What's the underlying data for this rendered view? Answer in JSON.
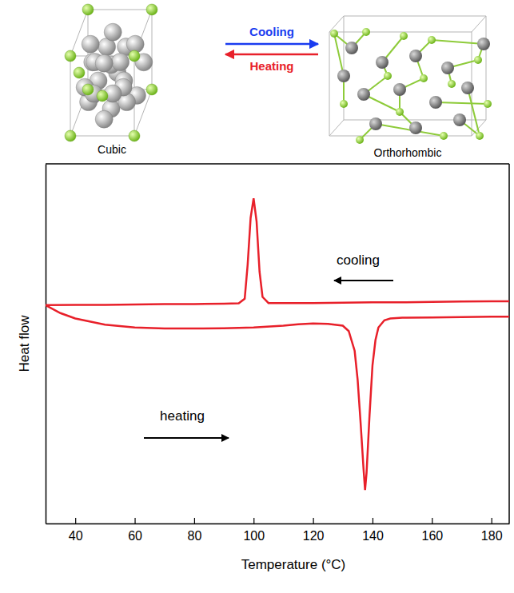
{
  "chart_data": {
    "type": "line",
    "x_label": "Temperature (°C)",
    "y_label": "Heat flow",
    "xlim": [
      30,
      186
    ],
    "xticks": [
      40,
      60,
      80,
      100,
      120,
      140,
      160,
      180
    ],
    "ylim": [
      0,
      100
    ],
    "tick_labels": "x",
    "grid": false,
    "series": [
      {
        "name": "cooling",
        "color": "#e8202a",
        "line_style": "solid",
        "x": [
          30,
          40,
          50,
          60,
          70,
          80,
          90,
          95,
          97,
          98,
          99,
          100,
          101,
          102,
          103,
          105,
          110,
          120,
          130,
          140,
          150,
          160,
          170,
          180,
          186
        ],
        "values": [
          60.7,
          60.8,
          60.8,
          60.9,
          61.0,
          61.0,
          61.1,
          61.2,
          62.5,
          72,
          85,
          90.4,
          84,
          70,
          63,
          61.3,
          61.3,
          61.3,
          61.4,
          61.5,
          61.5,
          61.6,
          61.7,
          61.8,
          61.8
        ]
      },
      {
        "name": "heating",
        "color": "#e8202a",
        "line_style": "solid",
        "x": [
          30,
          35,
          40,
          50,
          60,
          70,
          80,
          90,
          100,
          110,
          115,
          120,
          125,
          130,
          132,
          134,
          135,
          136,
          137,
          137.5,
          138,
          139,
          140,
          141,
          142,
          144,
          146,
          150,
          160,
          170,
          180,
          186
        ],
        "values": [
          60.7,
          58.5,
          57,
          55.3,
          54.5,
          54.2,
          54.2,
          54.3,
          54.5,
          55,
          55.4,
          55.6,
          55.5,
          55,
          53.5,
          48,
          40,
          28,
          15,
          9.3,
          14,
          30,
          44,
          51,
          54.5,
          56.5,
          57,
          57.2,
          57.3,
          57.4,
          57.5,
          57.5
        ]
      }
    ]
  },
  "diagram": {
    "structures": [
      {
        "label": "Cubic"
      },
      {
        "label": "Orthorhombic"
      }
    ],
    "arrows": [
      {
        "label": "Cooling",
        "color": "#1a3cf0"
      },
      {
        "label": "Heating",
        "color": "#e8202a"
      }
    ]
  }
}
